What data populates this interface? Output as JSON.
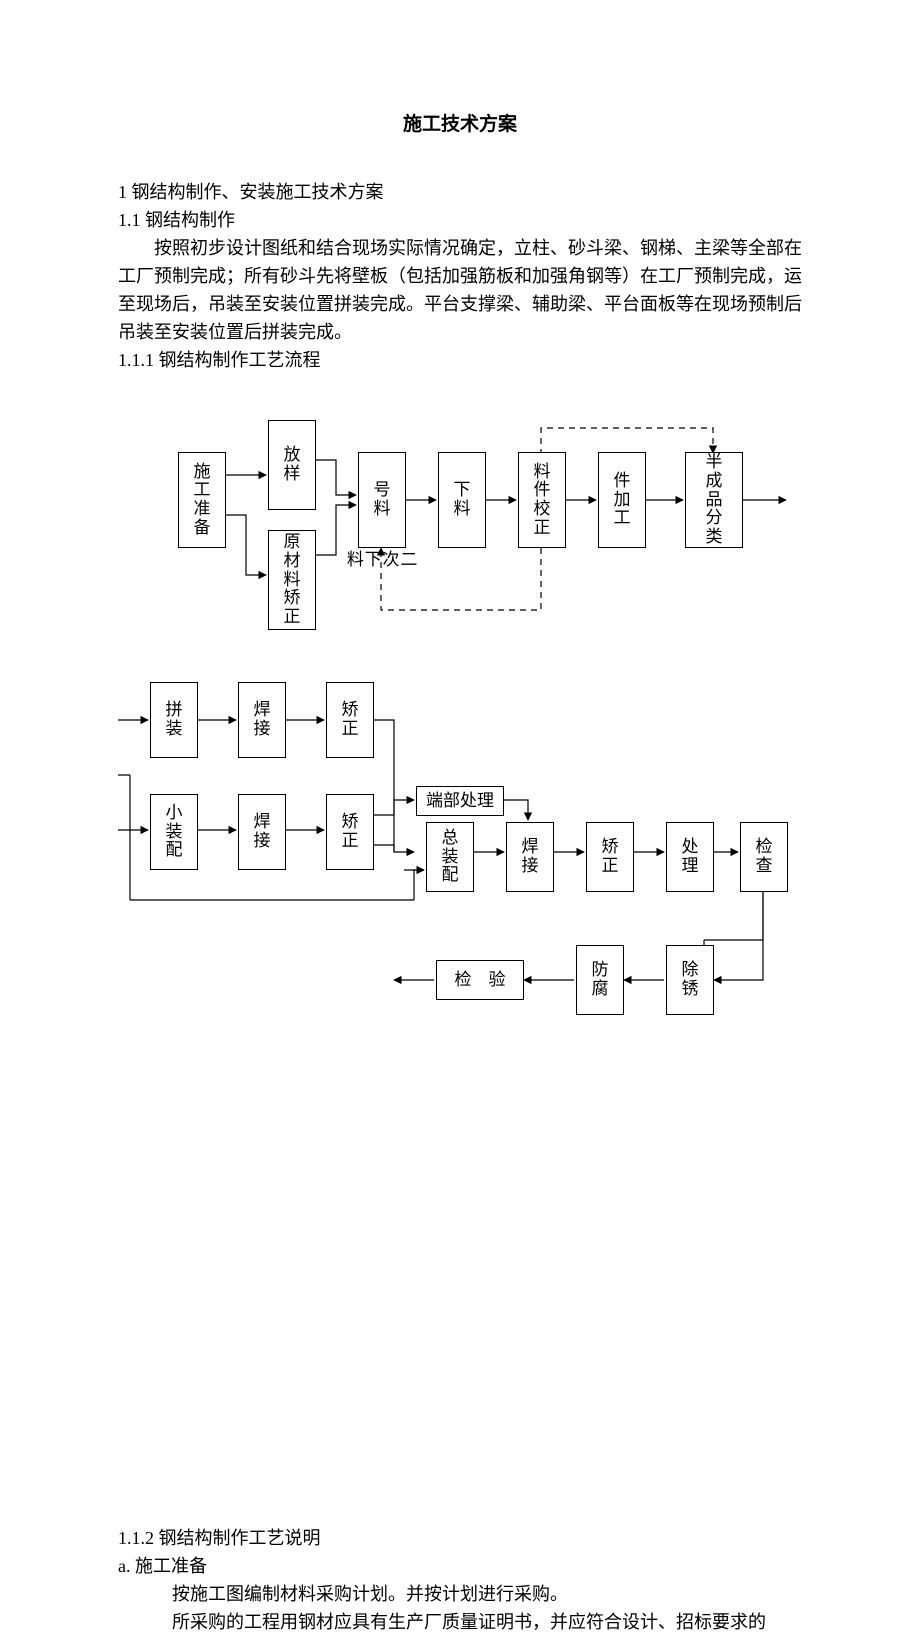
{
  "text": {
    "title": "施工技术方案",
    "h1": "1 钢结构制作、安装施工技术方案",
    "h11": "1.1 钢结构制作",
    "p1": "按照初步设计图纸和结合现场实际情况确定，立柱、砂斗梁、钢梯、主梁等全部在工厂预制完成；所有砂斗先将壁板（包括加强筋板和加强角钢等）在工厂预制完成，运至现场后，吊装至安装位置拼装完成。平台支撑梁、辅助梁、平台面板等在现场预制后吊装至安装位置后拼装完成。",
    "h111": "1.1.1 钢结构制作工艺流程",
    "h112": "1.1.2 钢结构制作工艺说明",
    "ha": "a. 施工准备",
    "pa1": "按施工图编制材料采购计划。并按计划进行采购。",
    "pa2": "所采购的工程用钢材应具有生产厂质量证明书，并应符合设计、招标要求的"
  },
  "boxes": {
    "prep": "施工准备",
    "layout": "放样",
    "mat_correct": "原材料矫正",
    "mark": "号料",
    "cut": "下料",
    "part_correct": "料件校正",
    "part_proc": "件加工",
    "semi_class": "半成品分类",
    "recut": "二次下料",
    "assem": "拼装",
    "weld1": "焊接",
    "straighten1": "矫正",
    "small_assem": "小装配",
    "weld2": "焊接",
    "straighten2": "矫正",
    "end_proc": "端部处理",
    "total_assem": "总装配",
    "weld3": "焊接",
    "straighten3": "矫正",
    "treat": "处理",
    "inspect": "检查",
    "anticorr": "防腐",
    "derust": "除锈",
    "final_inspect": "检　验"
  },
  "style": {
    "bg": "#ffffff",
    "fg": "#000000",
    "font_size_body": 18,
    "font_size_box": 17,
    "stroke_width": 1.2,
    "dash_pattern": "6 5"
  }
}
